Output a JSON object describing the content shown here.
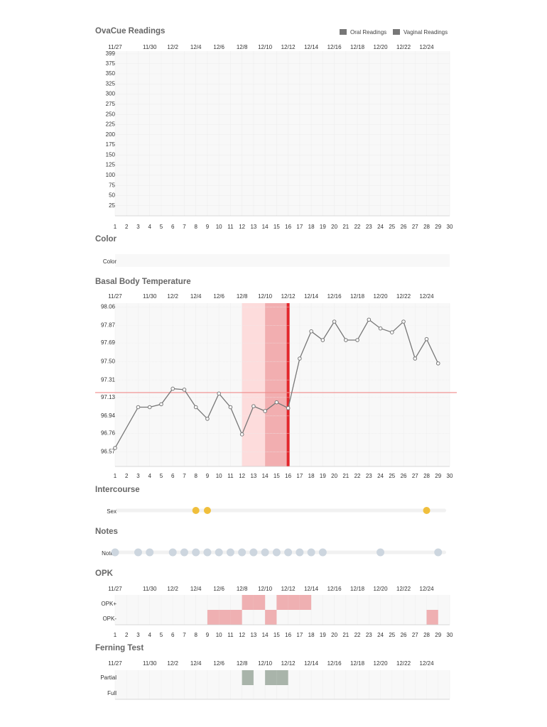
{
  "days": [
    1,
    2,
    3,
    4,
    5,
    6,
    7,
    8,
    9,
    10,
    11,
    12,
    13,
    14,
    15,
    16,
    17,
    18,
    19,
    20,
    21,
    22,
    23,
    24,
    25,
    26,
    27,
    28,
    29,
    30
  ],
  "date_labels": [
    {
      "day": 1,
      "label": "11/27"
    },
    {
      "day": 4,
      "label": "11/30"
    },
    {
      "day": 6,
      "label": "12/2"
    },
    {
      "day": 8,
      "label": "12/4"
    },
    {
      "day": 10,
      "label": "12/6"
    },
    {
      "day": 12,
      "label": "12/8"
    },
    {
      "day": 14,
      "label": "12/10"
    },
    {
      "day": 16,
      "label": "12/12"
    },
    {
      "day": 18,
      "label": "12/14"
    },
    {
      "day": 20,
      "label": "12/16"
    },
    {
      "day": 22,
      "label": "12/18"
    },
    {
      "day": 24,
      "label": "12/20"
    },
    {
      "day": 26,
      "label": "12/22"
    },
    {
      "day": 28,
      "label": "12/24"
    }
  ],
  "ovacue": {
    "title": "OvaCue Readings",
    "legend": [
      {
        "name": "Oral Readings",
        "color": "#777777"
      },
      {
        "name": "Vaginal Readings",
        "color": "#777777"
      }
    ],
    "ylim": [
      0,
      399
    ],
    "yticks": [
      399,
      375,
      350,
      325,
      300,
      275,
      250,
      225,
      200,
      175,
      150,
      125,
      100,
      75,
      50,
      25
    ]
  },
  "color": {
    "title": "Color",
    "rows": [
      "Color"
    ]
  },
  "bbt": {
    "type": "line",
    "title": "Basal Body Temperature",
    "ylim": [
      96.42,
      98.1
    ],
    "yticks": [
      98.06,
      97.87,
      97.69,
      {
        "value": 97.5,
        "label": "97.50"
      },
      97.31,
      97.13,
      96.94,
      96.76,
      96.57
    ],
    "x": [
      1,
      3,
      4,
      5,
      6,
      7,
      8,
      9,
      10,
      11,
      12,
      13,
      14,
      15,
      16,
      17,
      18,
      19,
      20,
      21,
      22,
      23,
      24,
      25,
      26,
      27,
      28,
      29
    ],
    "values": [
      96.61,
      97.03,
      97.03,
      97.06,
      97.22,
      97.21,
      97.03,
      96.91,
      97.17,
      97.03,
      96.75,
      97.04,
      96.99,
      97.08,
      97.02,
      97.53,
      97.81,
      97.72,
      97.91,
      97.72,
      97.72,
      97.93,
      97.84,
      97.8,
      97.91,
      97.53,
      97.73,
      97.48
    ],
    "color": "#777777",
    "coverline": 97.18,
    "coverline_color": "#f08a8a",
    "shading": [
      {
        "start": 12,
        "end": 14,
        "color": "#fddcdc"
      },
      {
        "start": 14,
        "end": 16,
        "color": "#f2aeb0"
      }
    ],
    "marker": {
      "day": 16,
      "color": "#e3262b"
    }
  },
  "intercourse": {
    "title": "Intercourse",
    "rows": [
      "Sex"
    ],
    "days": [
      8,
      9,
      28
    ],
    "color": "#f0bf3c"
  },
  "notes": {
    "title": "Notes",
    "rows": [
      "Notes"
    ],
    "days": [
      1,
      3,
      4,
      6,
      7,
      8,
      9,
      10,
      11,
      12,
      13,
      14,
      15,
      16,
      17,
      18,
      19,
      24,
      29
    ],
    "color": "#cdd6df"
  },
  "opk": {
    "title": "OPK",
    "rows": [
      "OPK+",
      "OPK-"
    ],
    "positive": [
      12,
      13,
      15,
      16,
      17
    ],
    "negative": [
      9,
      10,
      11,
      14,
      28
    ],
    "color": "#efb0b2"
  },
  "ferning": {
    "title": "Ferning Test",
    "rows": [
      "Partial",
      "Full"
    ],
    "partial": [
      12,
      14,
      15
    ],
    "color": "#a9b4aa"
  }
}
